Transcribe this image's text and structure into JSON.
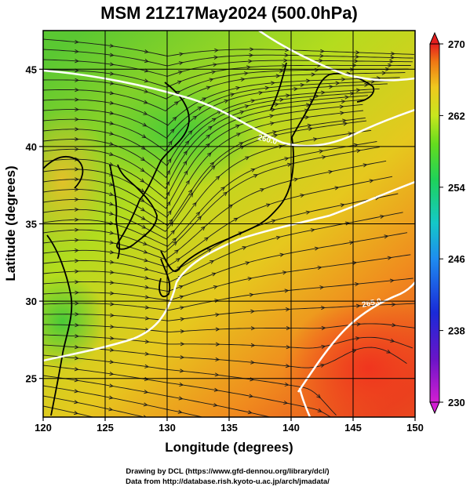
{
  "chart_data": {
    "type": "heatmap",
    "title": "MSM 21Z17May2024 (500.0hPa)",
    "xlabel": "Longitude (degrees)",
    "ylabel": "Latitude  (degrees)",
    "xlim": [
      120,
      150
    ],
    "ylim": [
      22.5,
      47.5
    ],
    "x_ticks": [
      "120",
      "125",
      "130",
      "135",
      "140",
      "145",
      "150"
    ],
    "y_ticks": [
      "25",
      "30",
      "35",
      "40",
      "45"
    ],
    "colorbar": {
      "range": [
        230,
        270
      ],
      "labels": [
        "270",
        "262",
        "254",
        "246",
        "238",
        "230"
      ]
    },
    "contour_labels": [
      "260.0",
      "265.0"
    ],
    "overlays": [
      "temperature shading",
      "streamlines",
      "coastlines",
      "temperature contours",
      "lat-lon grid"
    ]
  },
  "credits": {
    "line1": "Drawing by DCL (https://www.gfd-dennou.org/library/dcl/)",
    "line2": "Data from http://database.rish.kyoto-u.ac.jp/arch/jmadata/"
  }
}
